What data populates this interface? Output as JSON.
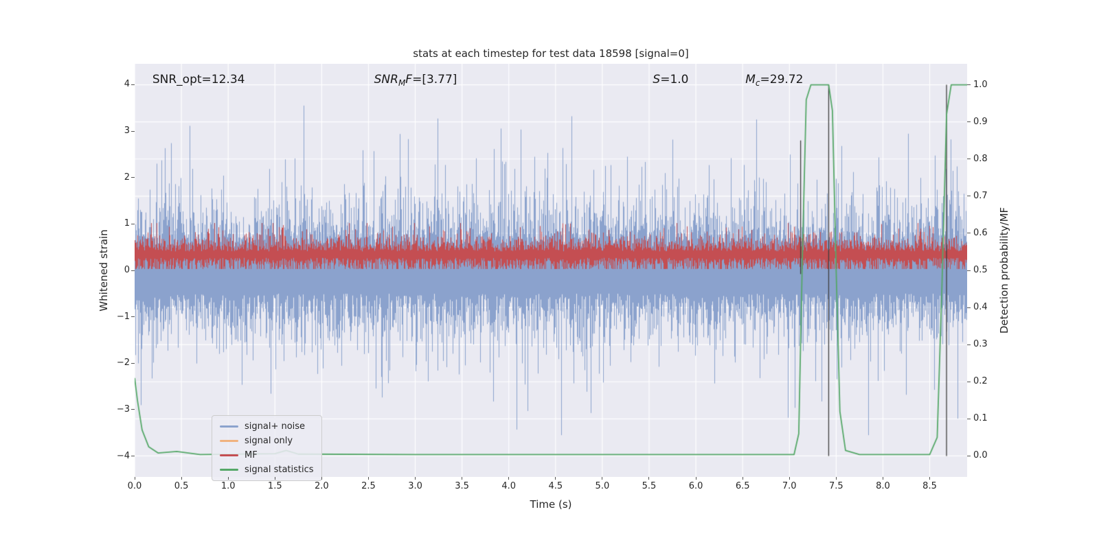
{
  "figure": {
    "background": "#ffffff",
    "axes_background": "#eaeaf2",
    "grid_color": "#ffffff",
    "text_color": "#262626"
  },
  "chart_data": {
    "type": "line",
    "title": "stats at each timestep for test data 18598 [signal=0]",
    "xlabel": "Time (s)",
    "x_axis": {
      "range": [
        0.0,
        8.9
      ],
      "ticks": [
        {
          "v": 0.0,
          "t": "0.0"
        },
        {
          "v": 0.5,
          "t": "0.5"
        },
        {
          "v": 1.0,
          "t": "1.0"
        },
        {
          "v": 1.5,
          "t": "1.5"
        },
        {
          "v": 2.0,
          "t": "2.0"
        },
        {
          "v": 2.5,
          "t": "2.5"
        },
        {
          "v": 3.0,
          "t": "3.0"
        },
        {
          "v": 3.5,
          "t": "3.5"
        },
        {
          "v": 4.0,
          "t": "4.0"
        },
        {
          "v": 4.5,
          "t": "4.5"
        },
        {
          "v": 5.0,
          "t": "5.0"
        },
        {
          "v": 5.5,
          "t": "5.5"
        },
        {
          "v": 6.0,
          "t": "6.0"
        },
        {
          "v": 6.5,
          "t": "6.5"
        },
        {
          "v": 7.0,
          "t": "7.0"
        },
        {
          "v": 7.5,
          "t": "7.5"
        },
        {
          "v": 8.0,
          "t": "8.0"
        },
        {
          "v": 8.5,
          "t": "8.5"
        }
      ]
    },
    "left_axis": {
      "label": "Whitened strain",
      "range": [
        -4.45,
        4.45
      ],
      "ticks": [
        {
          "v": -4,
          "t": "−4"
        },
        {
          "v": -3,
          "t": "−3"
        },
        {
          "v": -2,
          "t": "−2"
        },
        {
          "v": -1,
          "t": "−1"
        },
        {
          "v": 0,
          "t": "0"
        },
        {
          "v": 1,
          "t": "1"
        },
        {
          "v": 2,
          "t": "2"
        },
        {
          "v": 3,
          "t": "3"
        },
        {
          "v": 4,
          "t": "4"
        }
      ]
    },
    "right_axis": {
      "label": "Detection probability/MF",
      "range": [
        -0.0565,
        1.0565
      ],
      "ticks": [
        {
          "v": 0.0,
          "t": "0.0"
        },
        {
          "v": 0.1,
          "t": "0.1"
        },
        {
          "v": 0.2,
          "t": "0.2"
        },
        {
          "v": 0.3,
          "t": "0.3"
        },
        {
          "v": 0.4,
          "t": "0.4"
        },
        {
          "v": 0.5,
          "t": "0.5"
        },
        {
          "v": 0.6,
          "t": "0.6"
        },
        {
          "v": 0.7,
          "t": "0.7"
        },
        {
          "v": 0.8,
          "t": "0.8"
        },
        {
          "v": 0.9,
          "t": "0.9"
        },
        {
          "v": 1.0,
          "t": "1.0"
        }
      ]
    },
    "annotations": [
      {
        "x": 0.19,
        "y": 4.12,
        "parts": [
          {
            "t": "SNR_opt=12.34"
          }
        ]
      },
      {
        "x": 2.56,
        "y": 4.12,
        "parts": [
          {
            "t": "SNR",
            "i": 1
          },
          {
            "t": "M",
            "i": 1,
            "sub": 1
          },
          {
            "t": "F",
            "i": 1
          },
          {
            "t": "=[3.77]"
          }
        ]
      },
      {
        "x": 5.54,
        "y": 4.12,
        "parts": [
          {
            "t": "S",
            "i": 1
          },
          {
            "t": "=1.0"
          }
        ]
      },
      {
        "x": 6.53,
        "y": 4.12,
        "parts": [
          {
            "t": "M",
            "i": 1
          },
          {
            "t": "c",
            "i": 1,
            "sub": 1
          },
          {
            "t": "=29.72"
          }
        ]
      }
    ],
    "series": [
      {
        "name": "signal+ noise",
        "color": "#8ba2cd",
        "axis": "left",
        "render": "noise",
        "seed": 18598,
        "center": 0.0,
        "base": 0.5,
        "spread": 0.62,
        "spike_p": 0.05,
        "spike_amp": 2.2,
        "clip": [
          -3.55,
          3.55
        ],
        "description": "whitened noise, mean 0, std ~1.2, peaks to ~3.4"
      },
      {
        "name": "signal only",
        "color": "#f0b27e",
        "axis": "left",
        "render": "flat",
        "value": 0,
        "description": "all zeros since signal=0 (hidden under noise)"
      },
      {
        "name": "MF",
        "color": "#c44e52",
        "axis": "left",
        "render": "noise",
        "seed": 77,
        "center": 0.34,
        "base": 0.07,
        "spread": 0.19,
        "spike_p": 0.05,
        "spike_amp": 0.45,
        "clip": [
          0.03,
          1.02
        ],
        "description": "matched-filter output noisy band ~0.05-1.0"
      },
      {
        "name": "signal statistics",
        "color": "#55a868",
        "axis": "right",
        "render": "line",
        "width": 1.8,
        "points": [
          [
            0.0,
            0.21
          ],
          [
            0.03,
            0.15
          ],
          [
            0.08,
            0.07
          ],
          [
            0.15,
            0.025
          ],
          [
            0.25,
            0.008
          ],
          [
            0.45,
            0.012
          ],
          [
            0.7,
            0.004
          ],
          [
            1.5,
            0.006
          ],
          [
            1.62,
            0.015
          ],
          [
            1.75,
            0.005
          ],
          [
            3.0,
            0.004
          ],
          [
            5.0,
            0.004
          ],
          [
            7.05,
            0.004
          ],
          [
            7.1,
            0.06
          ],
          [
            7.14,
            0.55
          ],
          [
            7.18,
            0.96
          ],
          [
            7.23,
            1.0
          ],
          [
            7.42,
            1.0
          ],
          [
            7.46,
            0.93
          ],
          [
            7.5,
            0.5
          ],
          [
            7.54,
            0.12
          ],
          [
            7.6,
            0.015
          ],
          [
            7.75,
            0.004
          ],
          [
            8.5,
            0.004
          ],
          [
            8.58,
            0.05
          ],
          [
            8.63,
            0.45
          ],
          [
            8.68,
            0.92
          ],
          [
            8.73,
            1.0
          ],
          [
            8.9,
            1.0
          ]
        ]
      }
    ],
    "vlines": [
      {
        "x": 7.12,
        "y0": 0.49,
        "y1": 0.85,
        "color": "#3d3d3d"
      },
      {
        "x": 7.42,
        "y0": 0.0,
        "y1": 1.0,
        "color": "#3d3d3d"
      },
      {
        "x": 8.68,
        "y0": 0.0,
        "y1": 1.0,
        "color": "#3d3d3d"
      }
    ],
    "legend": {
      "items": [
        {
          "label": "signal+ noise",
          "color": "#8ba2cd"
        },
        {
          "label": "signal only",
          "color": "#f0b27e"
        },
        {
          "label": "MF",
          "color": "#c44e52"
        },
        {
          "label": "signal statistics",
          "color": "#55a868"
        }
      ]
    }
  }
}
